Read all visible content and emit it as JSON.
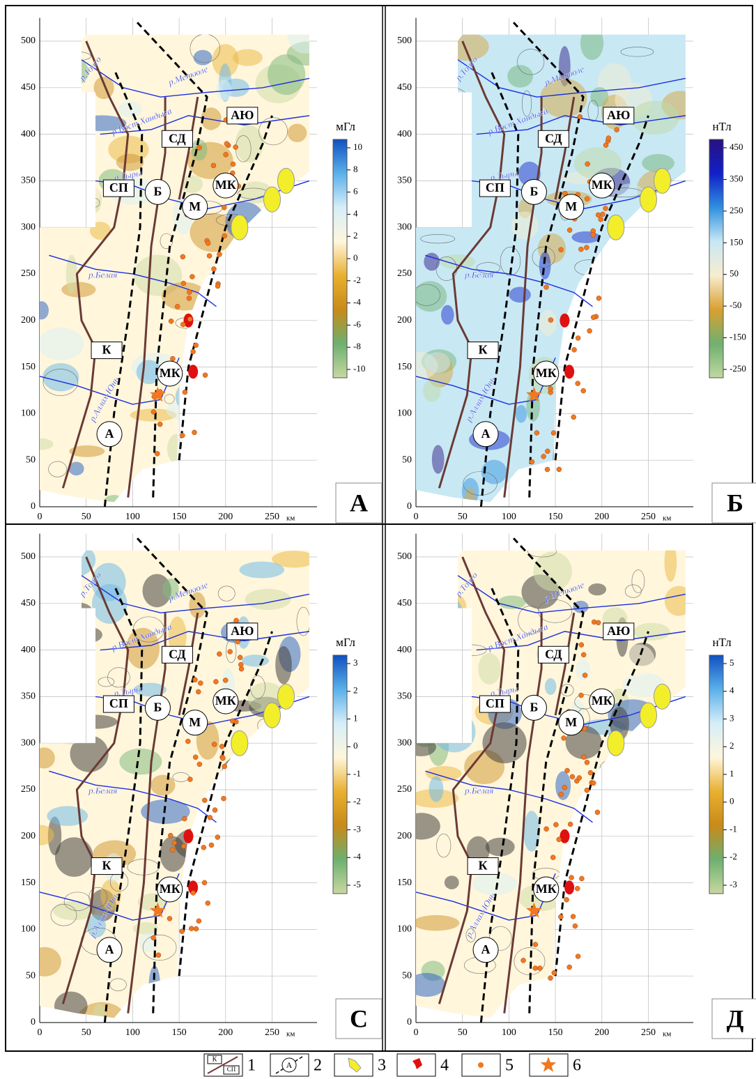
{
  "axes": {
    "xticks": [
      0,
      50,
      100,
      150,
      200,
      250
    ],
    "x_unit": "км",
    "yticks": [
      0,
      50,
      100,
      150,
      200,
      250,
      300,
      350,
      400,
      450,
      500
    ]
  },
  "map_labels": [
    "СП",
    "Б",
    "СД",
    "АЮ",
    "МК",
    "М",
    "К",
    "МК",
    "А"
  ],
  "rivers": [
    "р.Тонго",
    "р.Менкюле",
    "р.Вост.Хандыга",
    "р.Тыры",
    "р.Белая",
    "р.Аллах-Юнь"
  ],
  "panels": [
    {
      "label": "А",
      "unit": "мГл",
      "scale": [
        10,
        8,
        6,
        4,
        2,
        0,
        -2,
        -4,
        -6,
        -8,
        -10
      ]
    },
    {
      "label": "Б",
      "unit": "нТл",
      "scale": [
        450,
        350,
        250,
        150,
        50,
        -50,
        -150,
        -250
      ]
    },
    {
      "label": "С",
      "unit": "мГл",
      "scale": [
        3,
        2,
        1,
        0,
        -1,
        -2,
        -3,
        -4,
        -5
      ]
    },
    {
      "label": "Д",
      "unit": "нТл",
      "scale": [
        5,
        4,
        3,
        2,
        1,
        0,
        -1,
        -2,
        -3
      ]
    }
  ],
  "legend": {
    "items": [
      {
        "number": 1,
        "texts": [
          "К",
          "СП"
        ]
      },
      {
        "number": 2,
        "texts": [
          "А"
        ]
      },
      {
        "number": 3
      },
      {
        "number": 4
      },
      {
        "number": 5
      },
      {
        "number": 6
      }
    ]
  }
}
